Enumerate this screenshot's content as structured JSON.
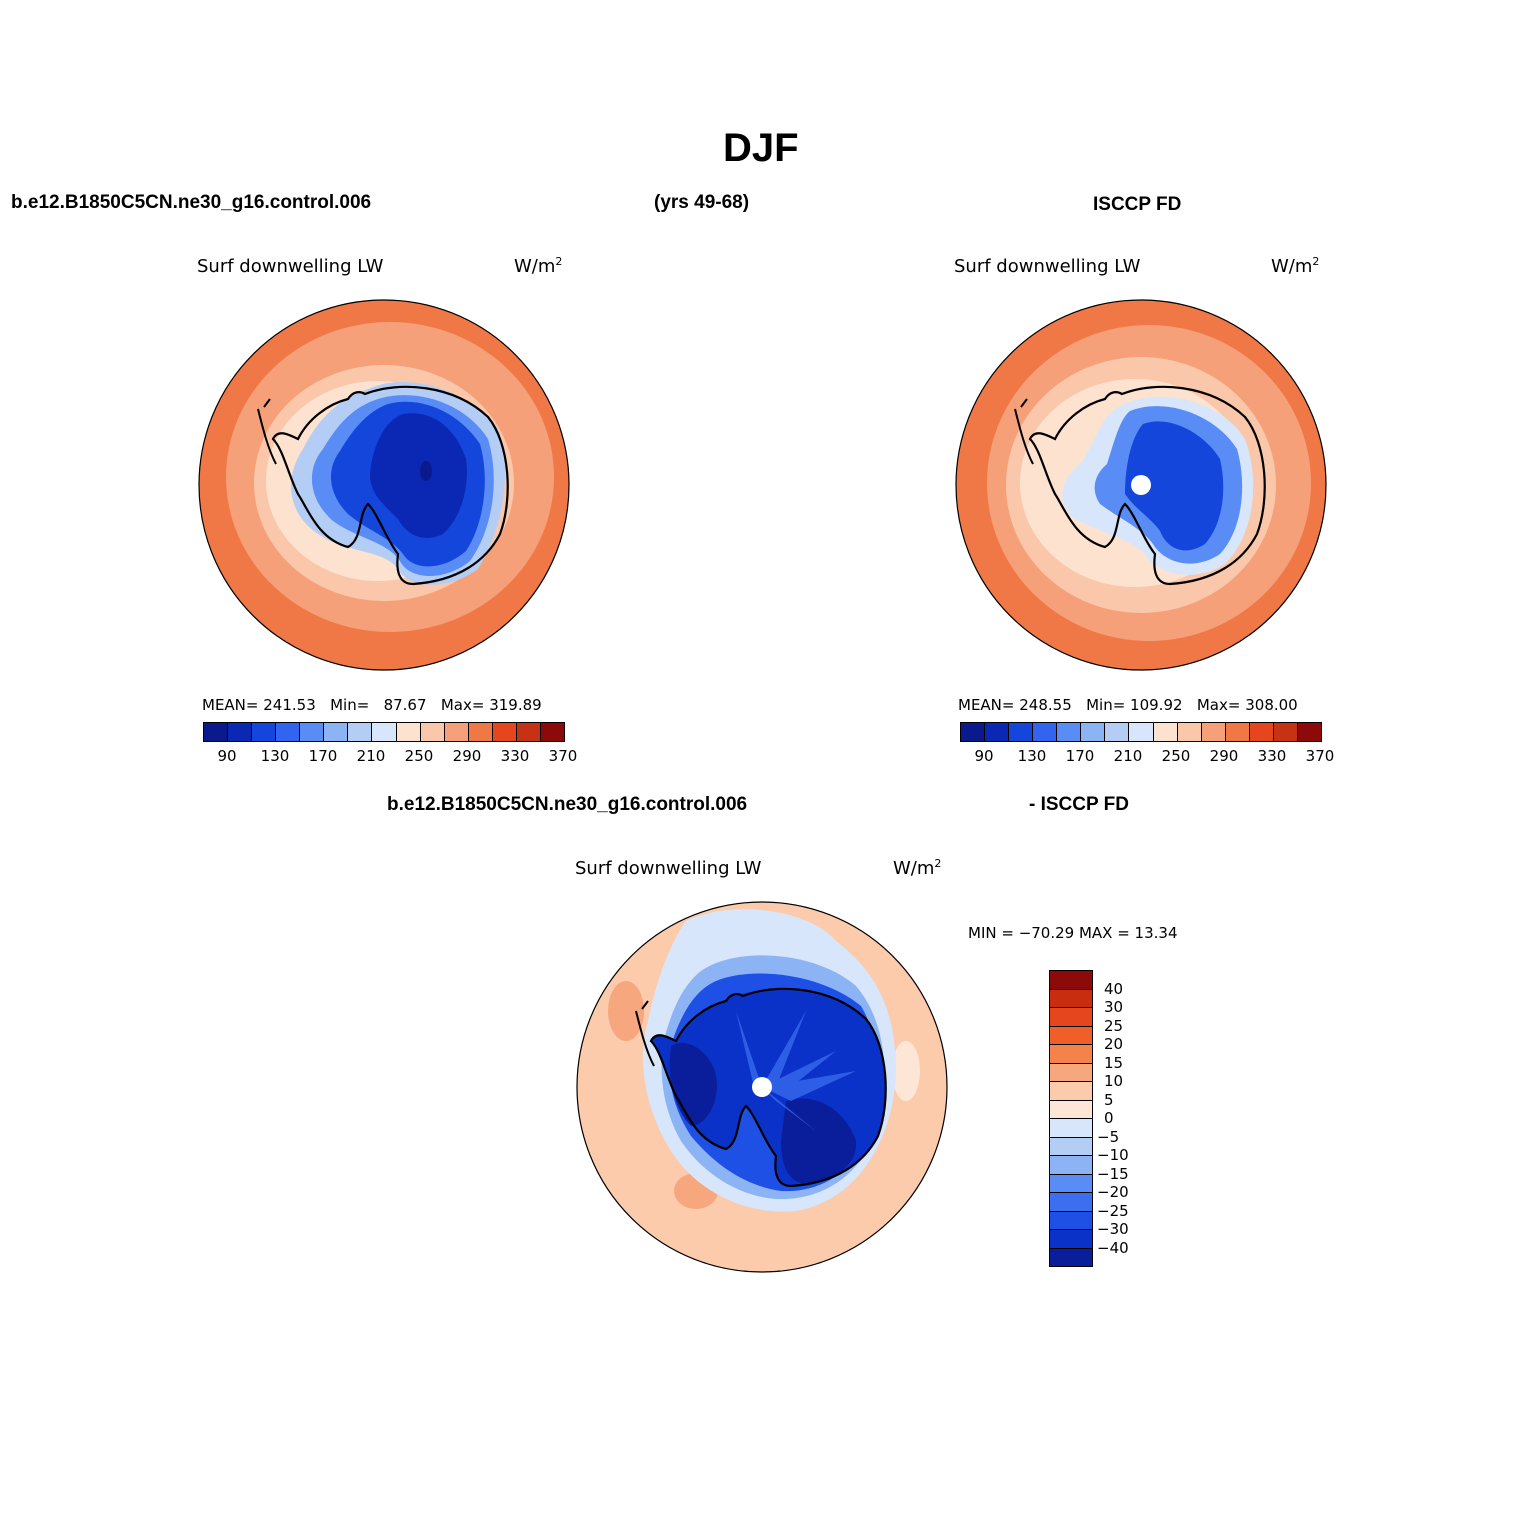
{
  "figure": {
    "title": "DJF",
    "case_name": "b.e12.B1850C5CN.ne30_g16.control.006",
    "years": "(yrs 49-68)",
    "obs_name": "ISCCP FD",
    "diff_case_name": "b.e12.B1850C5CN.ne30_g16.control.006",
    "diff_obs_name": "- ISCCP FD"
  },
  "panels": {
    "model": {
      "title": "Surf downwelling LW",
      "units": "W/m",
      "units_sup": "2",
      "mean_label": "MEAN=",
      "mean": "241.53",
      "min_label": "Min=",
      "min": "87.67",
      "max_label": "Max=",
      "max": "319.89"
    },
    "obs": {
      "title": "Surf downwelling LW",
      "units": "W/m",
      "units_sup": "2",
      "mean_label": "MEAN=",
      "mean": "248.55",
      "min_label": "Min=",
      "min": "109.92",
      "max_label": "Max=",
      "max": "308.00"
    },
    "diff": {
      "title": "Surf downwelling LW",
      "units": "W/m",
      "units_sup": "2",
      "minmax_text": "MIN = −70.29  MAX =   13.34"
    }
  },
  "colorbars": {
    "abs_colors": [
      "#0a1a8c",
      "#0a28b4",
      "#1446dc",
      "#3264f0",
      "#5a8cf5",
      "#8cb4f5",
      "#b4cdf5",
      "#d7e6fa",
      "#fde3cf",
      "#fac7aa",
      "#f5a078",
      "#f07846",
      "#e6461e",
      "#c83214",
      "#8c0a0a"
    ],
    "abs_ticks": [
      "90",
      "130",
      "170",
      "210",
      "250",
      "290",
      "330",
      "370"
    ],
    "diff_colors": [
      "#8c0a0a",
      "#c82d0f",
      "#e6461e",
      "#f05f28",
      "#f5824b",
      "#f7a77d",
      "#fbcbab",
      "#fde6d5",
      "#d7e6fa",
      "#b4cdf5",
      "#8cb4f5",
      "#5a8cf5",
      "#3c6ef0",
      "#1e50e6",
      "#0a32c8",
      "#0a1e9b"
    ],
    "diff_labels": [
      "40",
      "30",
      "25",
      "20",
      "15",
      "10",
      "5",
      "0",
      "−5",
      "−10",
      "−15",
      "−20",
      "−25",
      "−30",
      "−40"
    ]
  }
}
